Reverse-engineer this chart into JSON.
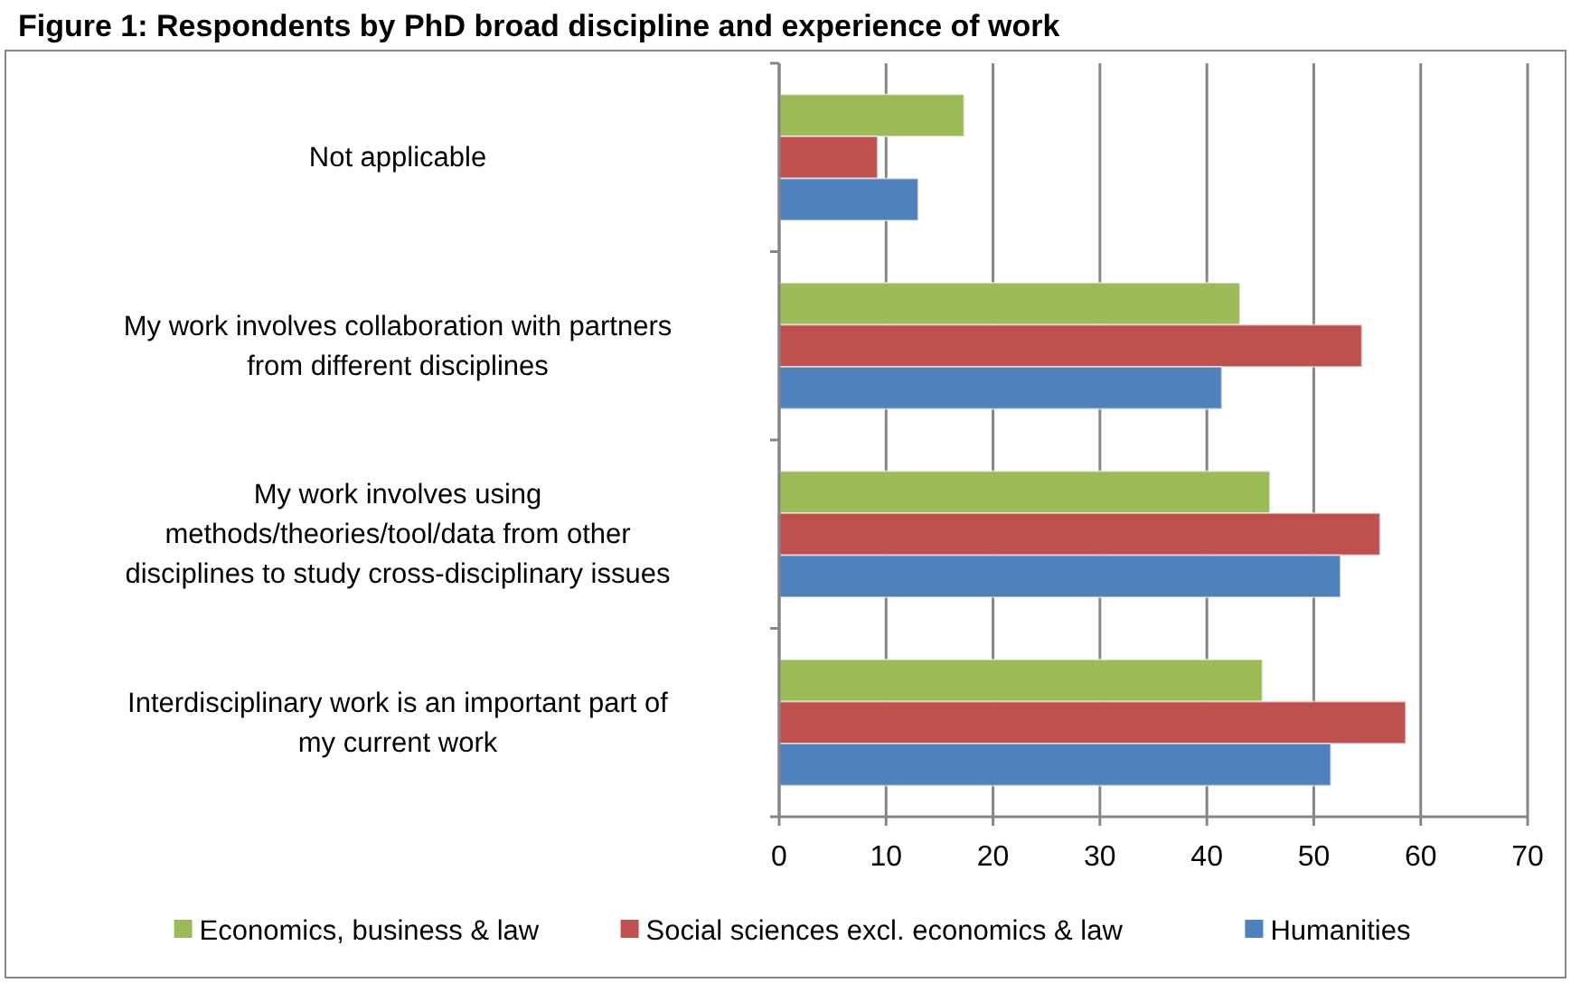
{
  "chart_data": {
    "type": "bar",
    "orientation": "horizontal",
    "title": "Figure 1: Respondents by PhD broad discipline and experience of work",
    "categories": [
      "Not applicable",
      "My work involves collaboration with partners from different disciplines",
      "My work involves using methods/theories/tool/data from other disciplines to study cross-disciplinary issues",
      "Interdisciplinary work is an important part of my current work"
    ],
    "series": [
      {
        "name": "Economics, business & law",
        "color": "#9bbb59",
        "values": [
          17.3,
          43.1,
          45.9,
          45.2
        ]
      },
      {
        "name": "Social sciences excl. economics & law",
        "color": "#c0504d",
        "values": [
          9.2,
          54.5,
          56.2,
          58.6
        ]
      },
      {
        "name": "Humanities",
        "color": "#4f81bd",
        "values": [
          13.0,
          41.4,
          52.5,
          51.6
        ]
      }
    ],
    "xlim": [
      0,
      70
    ],
    "xticks": [
      0,
      10,
      20,
      30,
      40,
      50,
      60,
      70
    ],
    "grid": "x",
    "legend": "bottom"
  }
}
